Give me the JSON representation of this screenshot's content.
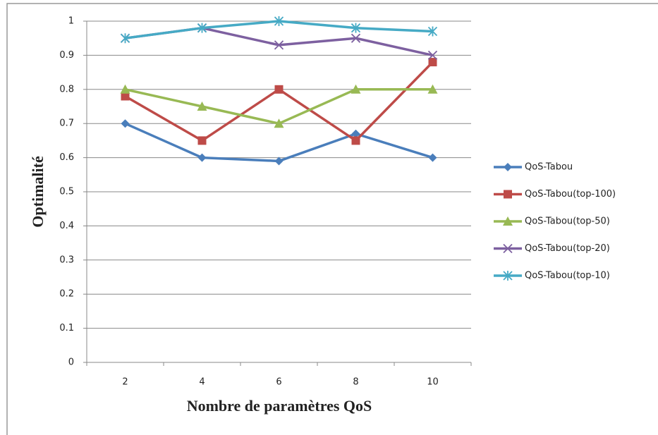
{
  "chart_data": {
    "type": "line",
    "xlabel": "Nombre de paramètres QoS",
    "ylabel": "Optimalité",
    "categories": [
      "2",
      "4",
      "6",
      "8",
      "10"
    ],
    "series": [
      {
        "name": "QoS-Tabou",
        "color": "#4a7ebb",
        "marker": "diamond",
        "values": [
          0.7,
          0.6,
          0.59,
          0.67,
          0.6
        ]
      },
      {
        "name": "QoS-Tabou(top-100)",
        "color": "#be4b48",
        "marker": "square",
        "values": [
          0.78,
          0.65,
          0.8,
          0.65,
          0.88
        ]
      },
      {
        "name": "QoS-Tabou(top-50)",
        "color": "#98b954",
        "marker": "triangle",
        "values": [
          0.8,
          0.75,
          0.7,
          0.8,
          0.8
        ]
      },
      {
        "name": "QoS-Tabou(top-20)",
        "color": "#7d60a0",
        "marker": "x",
        "values": [
          0.95,
          0.98,
          0.93,
          0.95,
          0.9
        ]
      },
      {
        "name": "QoS-Tabou(top-10)",
        "color": "#46aac5",
        "marker": "star",
        "values": [
          0.95,
          0.98,
          1,
          0.98,
          0.97
        ]
      }
    ],
    "ylim": [
      0,
      1
    ],
    "yticks": [
      0,
      0.1,
      0.2,
      0.3,
      0.4,
      0.5,
      0.6,
      0.7,
      0.8,
      0.9,
      1
    ],
    "grid": true,
    "legend": "right"
  }
}
